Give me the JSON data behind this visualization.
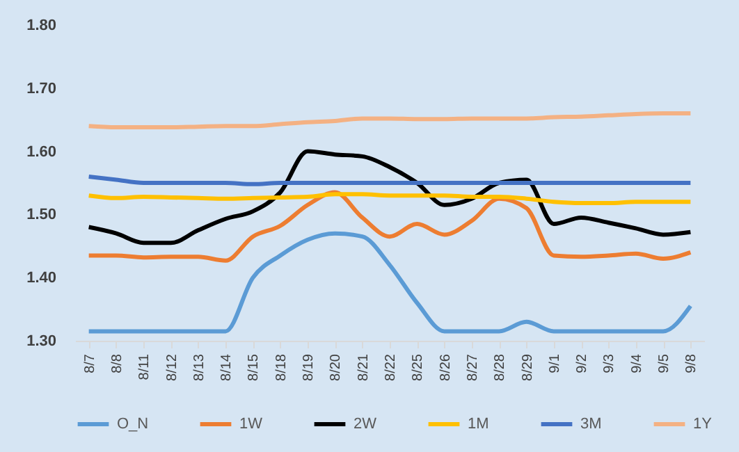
{
  "chart_data": {
    "type": "line",
    "categories": [
      "8/7",
      "8/8",
      "8/11",
      "8/12",
      "8/13",
      "8/14",
      "8/15",
      "8/18",
      "8/19",
      "8/20",
      "8/21",
      "8/22",
      "8/25",
      "8/26",
      "8/27",
      "8/28",
      "8/29",
      "9/1",
      "9/2",
      "9/3",
      "9/4",
      "9/5",
      "9/8"
    ],
    "series": [
      {
        "name": "O_N",
        "color": "#5b9bd5",
        "values": [
          1.315,
          1.315,
          1.315,
          1.315,
          1.315,
          1.315,
          1.4,
          1.435,
          1.46,
          1.47,
          1.465,
          1.42,
          1.36,
          1.315,
          1.315,
          1.315,
          1.33,
          1.315,
          1.315,
          1.315,
          1.315,
          1.315,
          1.355
        ]
      },
      {
        "name": "1W",
        "color": "#ed7d31",
        "values": [
          1.435,
          1.435,
          1.432,
          1.433,
          1.433,
          1.427,
          1.465,
          1.482,
          1.515,
          1.535,
          1.495,
          1.465,
          1.485,
          1.468,
          1.49,
          1.525,
          1.51,
          1.435,
          1.433,
          1.435,
          1.438,
          1.43,
          1.44
        ]
      },
      {
        "name": "2W",
        "color": "#000000",
        "values": [
          1.48,
          1.47,
          1.455,
          1.455,
          1.475,
          1.493,
          1.505,
          1.535,
          1.6,
          1.595,
          1.592,
          1.575,
          1.55,
          1.515,
          1.525,
          1.55,
          1.555,
          1.485,
          1.495,
          1.487,
          1.478,
          1.468,
          1.472
        ]
      },
      {
        "name": "1M",
        "color": "#ffc000",
        "values": [
          1.53,
          1.526,
          1.528,
          1.527,
          1.526,
          1.525,
          1.526,
          1.527,
          1.528,
          1.532,
          1.532,
          1.53,
          1.53,
          1.53,
          1.528,
          1.528,
          1.525,
          1.52,
          1.518,
          1.518,
          1.52,
          1.52,
          1.52
        ]
      },
      {
        "name": "3M",
        "color": "#4472c4",
        "values": [
          1.56,
          1.555,
          1.55,
          1.55,
          1.55,
          1.55,
          1.548,
          1.55,
          1.55,
          1.55,
          1.55,
          1.55,
          1.55,
          1.55,
          1.55,
          1.55,
          1.55,
          1.55,
          1.55,
          1.55,
          1.55,
          1.55,
          1.55
        ]
      },
      {
        "name": "1Y",
        "color": "#f4b183",
        "values": [
          1.64,
          1.638,
          1.638,
          1.638,
          1.639,
          1.64,
          1.64,
          1.643,
          1.646,
          1.648,
          1.652,
          1.652,
          1.651,
          1.651,
          1.652,
          1.652,
          1.652,
          1.654,
          1.655,
          1.657,
          1.659,
          1.66,
          1.66
        ]
      }
    ],
    "ylim": [
      1.3,
      1.8
    ],
    "yticks": [
      {
        "value": 1.3,
        "label": "1.30"
      },
      {
        "value": 1.4,
        "label": "1.40"
      },
      {
        "value": 1.5,
        "label": "1.50"
      },
      {
        "value": 1.6,
        "label": "1.60"
      },
      {
        "value": 1.7,
        "label": "1.70"
      },
      {
        "value": 1.8,
        "label": "1.80"
      }
    ],
    "grid": false,
    "legend": "bottom",
    "marker": "none",
    "line_style": "solid"
  }
}
